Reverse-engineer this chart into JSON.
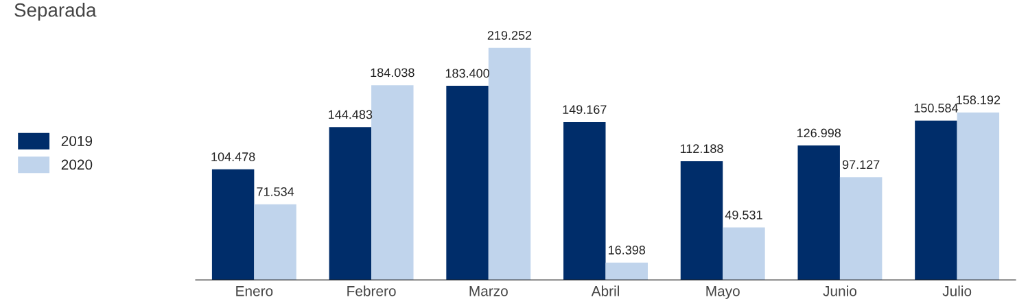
{
  "chart_data": {
    "type": "bar",
    "title": "Separada",
    "categories": [
      "Enero",
      "Febrero",
      "Marzo",
      "Abril",
      "Mayo",
      "Junio",
      "Julio"
    ],
    "series": [
      {
        "name": "2019",
        "color": "#002d6a",
        "values": [
          104478,
          144483,
          183400,
          149167,
          112188,
          126998,
          150584
        ],
        "value_labels": [
          "104.478",
          "144.483",
          "183.400",
          "149.167",
          "112.188",
          "126.998",
          "150.584"
        ]
      },
      {
        "name": "2020",
        "color": "#c0d4ec",
        "values": [
          71534,
          184038,
          219252,
          16398,
          49531,
          97127,
          158192
        ],
        "value_labels": [
          "71.534",
          "184.038",
          "219.252",
          "16.398",
          "49.531",
          "97.127",
          "158.192"
        ]
      }
    ],
    "legend": "left",
    "grid": false
  }
}
